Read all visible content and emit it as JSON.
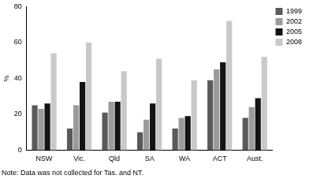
{
  "chart_data": {
    "type": "bar",
    "y_label": "%",
    "note": "Note: Data was not collected for Tas. and NT.",
    "categories": [
      "NSW",
      "Vic.",
      "Qld",
      "SA",
      "WA",
      "ACT",
      "Aust."
    ],
    "series": [
      {
        "name": "1999",
        "color": "#5a5a5c",
        "values": [
          25,
          12,
          21,
          10,
          12,
          39,
          18
        ]
      },
      {
        "name": "2002",
        "color": "#9b9b9b",
        "values": [
          23,
          25,
          27,
          17,
          18,
          45,
          24
        ]
      },
      {
        "name": "2005",
        "color": "#141414",
        "values": [
          26,
          38,
          27,
          26,
          19,
          49,
          29
        ]
      },
      {
        "name": "2008",
        "color": "#c9c9c9",
        "values": [
          54,
          60,
          44,
          51,
          39,
          72,
          52
        ]
      }
    ],
    "ylim": [
      0,
      80
    ],
    "yticks": [
      0,
      20,
      40,
      60,
      80
    ],
    "grid": false,
    "legend": "top-right"
  }
}
